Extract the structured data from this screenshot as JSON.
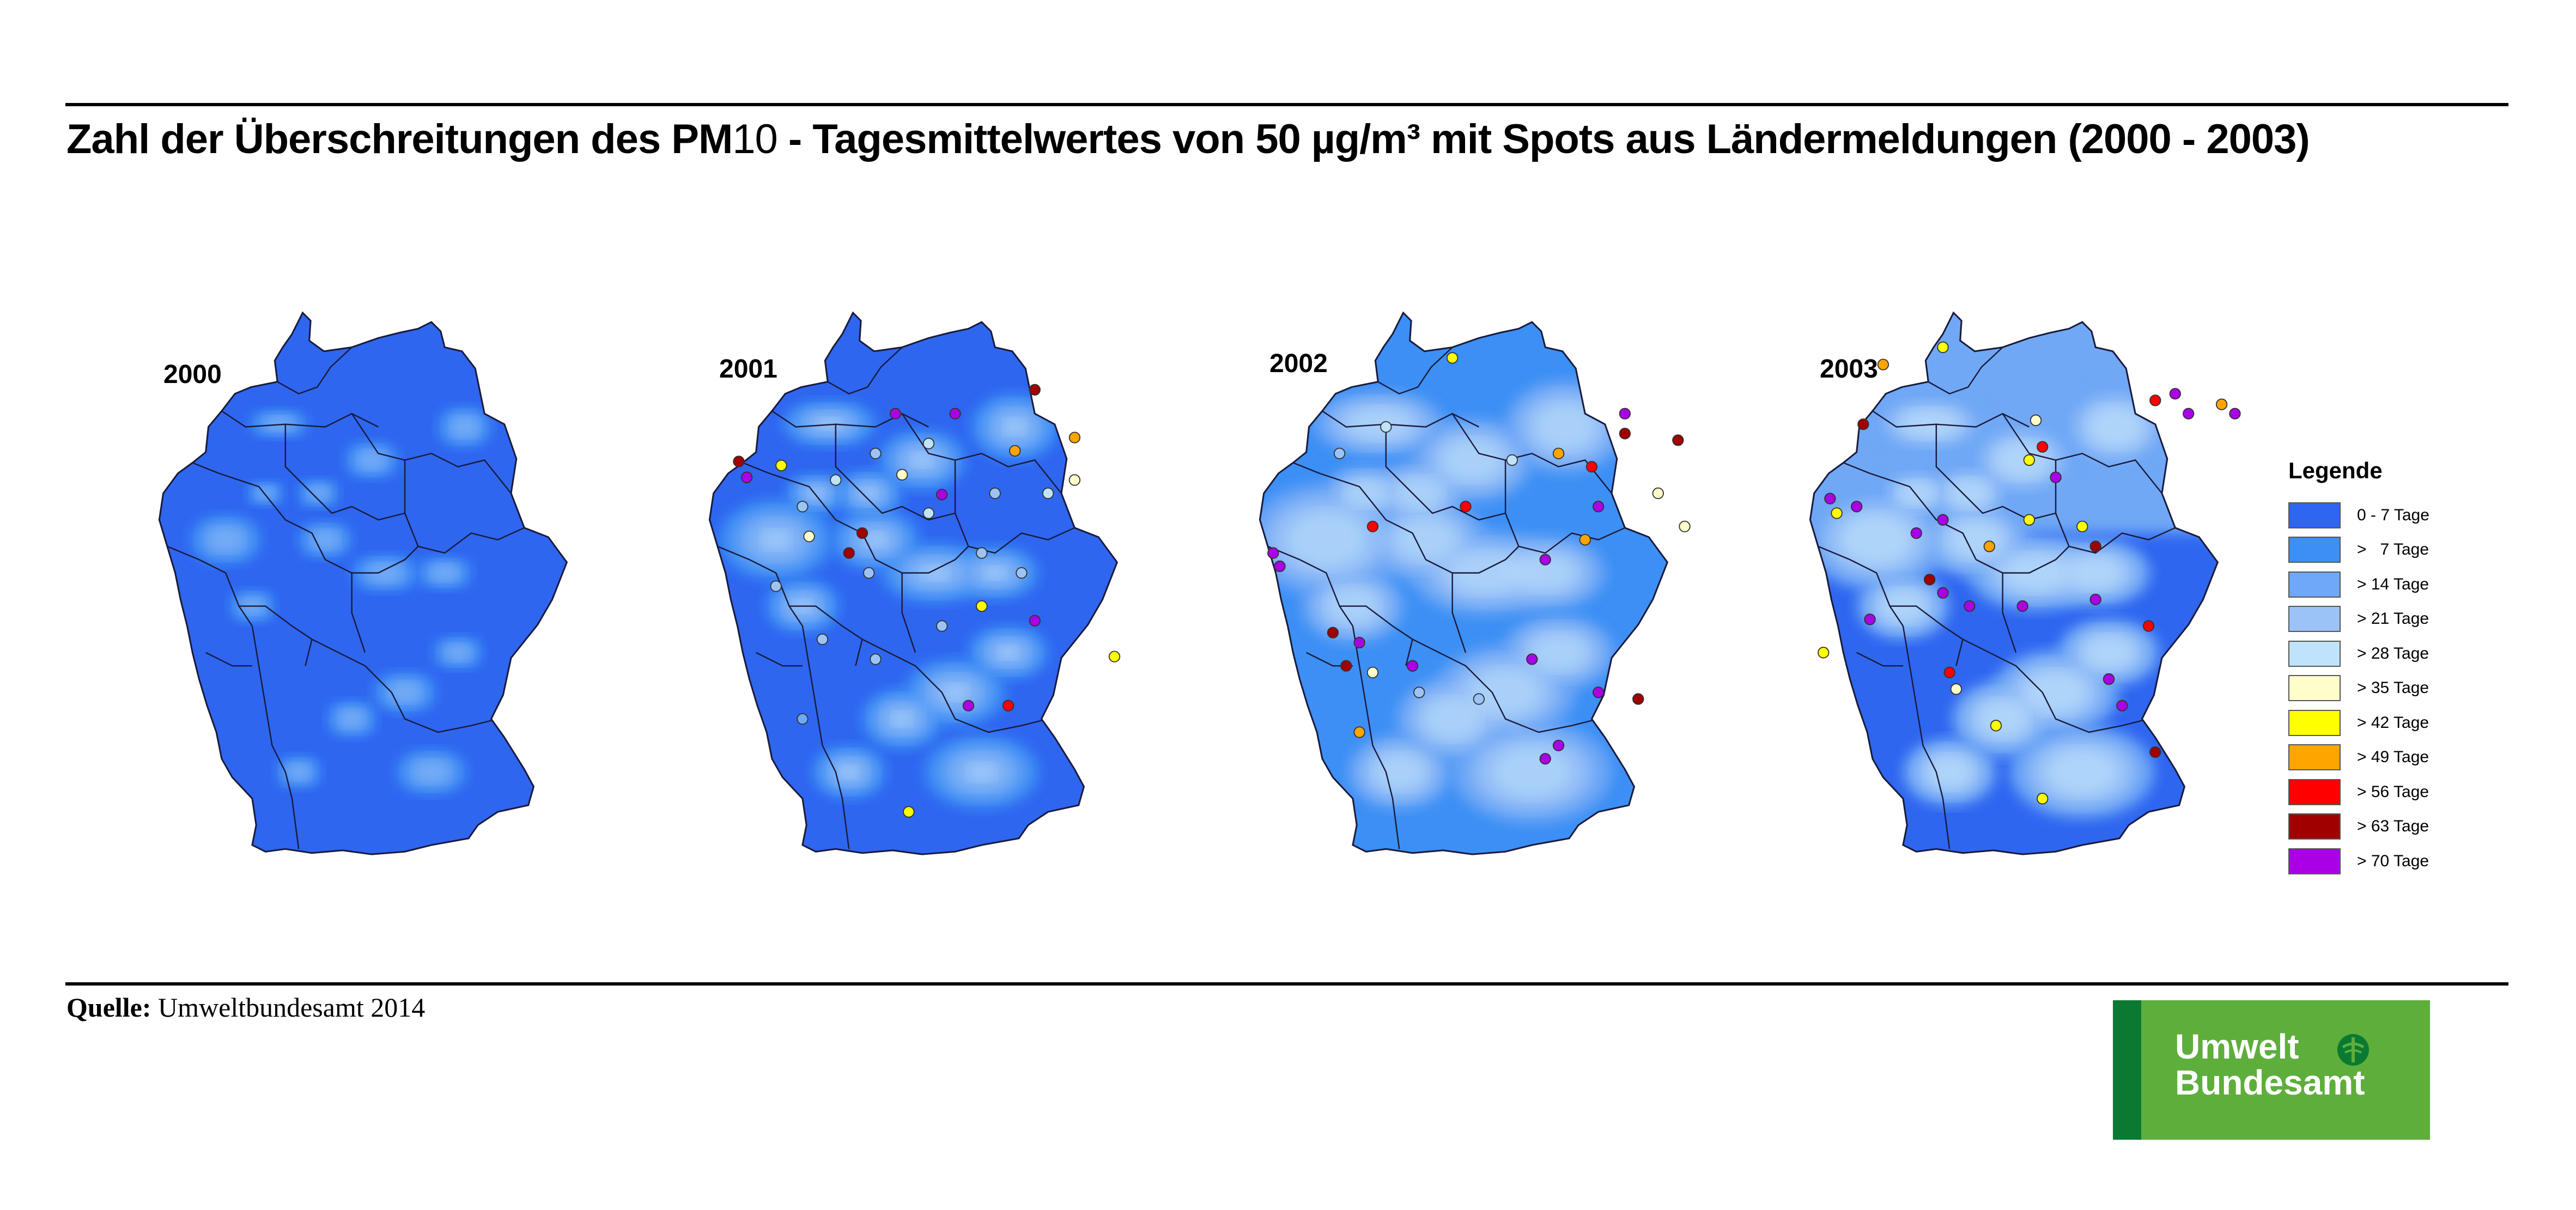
{
  "title": {
    "part1": "Zahl der Überschreitungen des PM",
    "part2": "10",
    "part3": " - Tagesmittelwertes von 50 µg/m³ mit Spots aus Ländermeldungen (2000 - 2003)"
  },
  "maps": [
    {
      "year": "2000"
    },
    {
      "year": "2001"
    },
    {
      "year": "2002"
    },
    {
      "year": "2003"
    }
  ],
  "legend": {
    "title": "Legende",
    "items": [
      {
        "label": "0 - 7 Tage",
        "color": "#2e66f0"
      },
      {
        "label": ">   7 Tage",
        "color": "#3c8ff5"
      },
      {
        "label": "> 14 Tage",
        "color": "#6fa8f6"
      },
      {
        "label": "> 21 Tage",
        "color": "#9cc3f8"
      },
      {
        "label": "> 28 Tage",
        "color": "#bfe3fb"
      },
      {
        "label": "> 35 Tage",
        "color": "#ffffcc"
      },
      {
        "label": "> 42 Tage",
        "color": "#ffff00"
      },
      {
        "label": "> 49 Tage",
        "color": "#ffa500"
      },
      {
        "label": "> 56 Tage",
        "color": "#ff0000"
      },
      {
        "label": "> 63 Tage",
        "color": "#a00000"
      },
      {
        "label": "> 70 Tage",
        "color": "#aa00e6"
      }
    ]
  },
  "source": {
    "label": "Quelle:",
    "text": " Umweltbundesamt 2014"
  },
  "logo": {
    "line1": "Umwelt",
    "line2": "Bundesamt"
  }
}
